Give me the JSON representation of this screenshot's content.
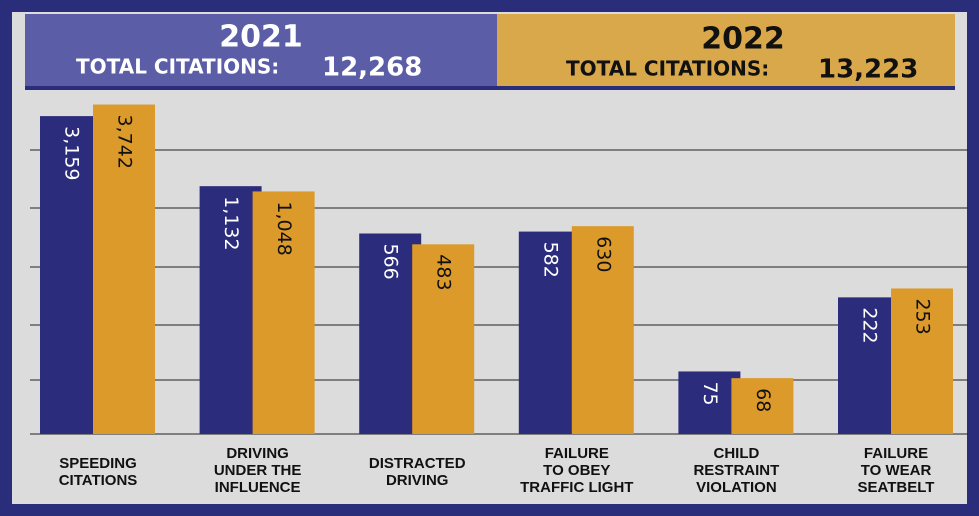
{
  "chart_data": {
    "type": "bar",
    "categories": [
      "SPEEDING\nCITATIONS",
      "DRIVING\nUNDER THE\nINFLUENCE",
      "DISTRACTED\nDRIVING",
      "FAILURE\nTO OBEY\nTRAFFIC LIGHT",
      "CHILD\nRESTRAINT\nVIOLATION",
      "FAILURE\nTO WEAR\nSEATBELT"
    ],
    "series": [
      {
        "name": "2021",
        "color": "#2b2d7c",
        "caption": "TOTAL CITATIONS:",
        "total": "12,268",
        "values": [
          3159,
          1132,
          566,
          582,
          75,
          222
        ],
        "value_labels": [
          "3,159",
          "1,132",
          "566",
          "582",
          "75",
          "222"
        ]
      },
      {
        "name": "2022",
        "color": "#dc9a2a",
        "caption": "TOTAL CITATIONS:",
        "total": "13,223",
        "values": [
          3742,
          1048,
          483,
          630,
          68,
          253
        ],
        "value_labels": [
          "3,742",
          "1,048",
          "483",
          "630",
          "68",
          "253"
        ]
      }
    ],
    "ylim": [
      30,
      4000
    ],
    "log": true
  }
}
